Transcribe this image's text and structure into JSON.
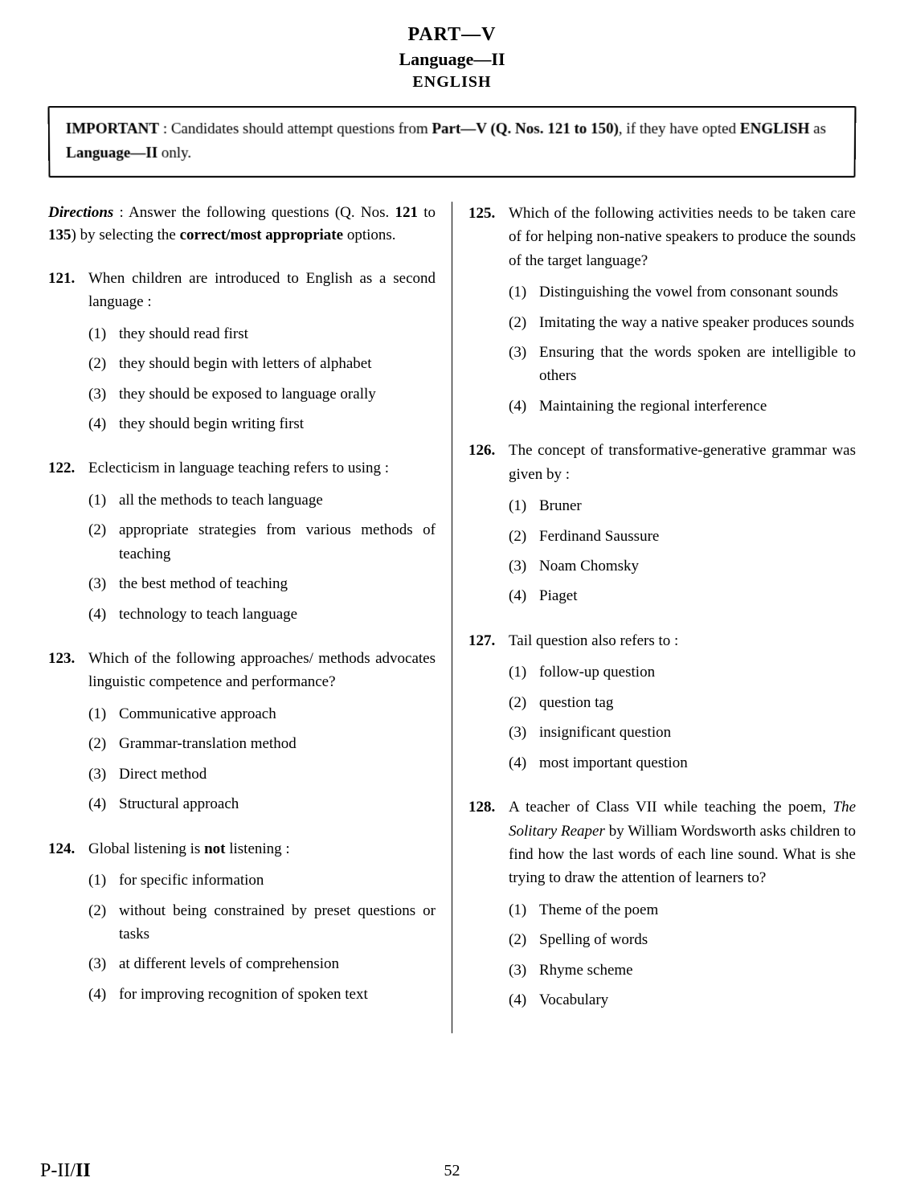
{
  "header": {
    "part": "PART—V",
    "language": "Language—II",
    "subject": "ENGLISH"
  },
  "important_box": {
    "label": "IMPORTANT",
    "text_parts": [
      " : Candidates should attempt questions from ",
      "Part—V (Q. Nos. 121 to 150)",
      ", if they have opted ",
      "ENGLISH",
      " as ",
      "Language—II",
      " only."
    ]
  },
  "directions": {
    "label": "Directions",
    "text_parts": [
      " : Answer the following questions (Q. Nos. ",
      "121",
      " to ",
      "135",
      ") by selecting the ",
      "correct/most appropriate",
      " options."
    ]
  },
  "left_questions": [
    {
      "num": "121.",
      "text": "When children are introduced to English as a second language :",
      "options": [
        {
          "num": "(1)",
          "text": "they should read first"
        },
        {
          "num": "(2)",
          "text": "they should begin with letters of alphabet"
        },
        {
          "num": "(3)",
          "text": "they should be exposed to language orally"
        },
        {
          "num": "(4)",
          "text": "they should begin writing first"
        }
      ]
    },
    {
      "num": "122.",
      "text": "Eclecticism in language teaching refers to using :",
      "options": [
        {
          "num": "(1)",
          "text": "all the methods to teach language"
        },
        {
          "num": "(2)",
          "text": "appropriate strategies from various methods of teaching"
        },
        {
          "num": "(3)",
          "text": "the best method of teaching"
        },
        {
          "num": "(4)",
          "text": "technology to teach language"
        }
      ]
    },
    {
      "num": "123.",
      "text": "Which of the following approaches/ methods advocates linguistic competence and performance?",
      "options": [
        {
          "num": "(1)",
          "text": "Communicative approach"
        },
        {
          "num": "(2)",
          "text": "Grammar-translation method"
        },
        {
          "num": "(3)",
          "text": "Direct method"
        },
        {
          "num": "(4)",
          "text": "Structural approach"
        }
      ]
    },
    {
      "num": "124.",
      "text_html": "Global listening is <b>not</b> listening :",
      "options": [
        {
          "num": "(1)",
          "text": "for specific information"
        },
        {
          "num": "(2)",
          "text": "without being constrained by preset questions or tasks"
        },
        {
          "num": "(3)",
          "text": "at different levels of compre­hension"
        },
        {
          "num": "(4)",
          "text": "for improving recognition of spoken text"
        }
      ]
    }
  ],
  "right_questions": [
    {
      "num": "125.",
      "text": "Which of the following activities needs to be taken care of for helping non-native speakers to produce the sounds of the target language?",
      "options": [
        {
          "num": "(1)",
          "text": "Distinguishing the vowel from consonant sounds"
        },
        {
          "num": "(2)",
          "text": "Imitating the way a native speaker produces sounds"
        },
        {
          "num": "(3)",
          "text": "Ensuring that the words spoken are intelligible to others"
        },
        {
          "num": "(4)",
          "text": "Maintaining the regional interference"
        }
      ]
    },
    {
      "num": "126.",
      "text": "The concept of transformative-generative grammar was given by :",
      "options": [
        {
          "num": "(1)",
          "text": "Bruner"
        },
        {
          "num": "(2)",
          "text": "Ferdinand Saussure"
        },
        {
          "num": "(3)",
          "text": "Noam Chomsky"
        },
        {
          "num": "(4)",
          "text": "Piaget"
        }
      ]
    },
    {
      "num": "127.",
      "text": "Tail question also refers to :",
      "options": [
        {
          "num": "(1)",
          "text": "follow-up question"
        },
        {
          "num": "(2)",
          "text": "question tag"
        },
        {
          "num": "(3)",
          "text": "insignificant question"
        },
        {
          "num": "(4)",
          "text": "most important question"
        }
      ]
    },
    {
      "num": "128.",
      "text_html": "A teacher of Class VII while teaching the poem, <i>The Solitary Reaper</i> by William Wordsworth asks children to find how the last words of each line sound. What is she trying to draw the attention of learners to?",
      "options": [
        {
          "num": "(1)",
          "text": "Theme of the poem"
        },
        {
          "num": "(2)",
          "text": "Spelling of words"
        },
        {
          "num": "(3)",
          "text": "Rhyme scheme"
        },
        {
          "num": "(4)",
          "text": "Vocabulary"
        }
      ]
    }
  ],
  "footer": {
    "left_prefix": "P-II/",
    "left_bold": "II",
    "page_num": "52"
  }
}
